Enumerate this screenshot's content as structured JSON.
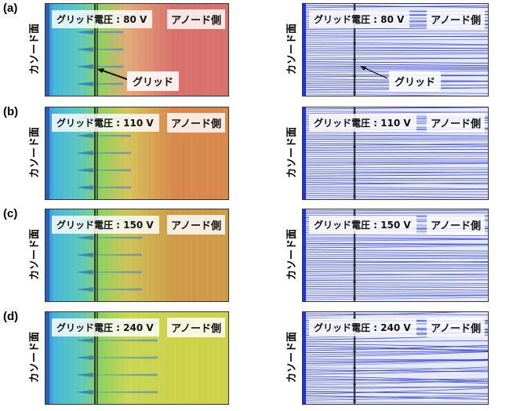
{
  "rows": [
    {
      "label": "(a)",
      "voltage_text": "グリッド電圧 : 80 V",
      "anode_text": "アノード側",
      "cathode_text": "カソード面",
      "grid_callout": "グリッド",
      "hue_shift": 0
    },
    {
      "label": "(b)",
      "voltage_text": "グリッド電圧 : 110 V",
      "anode_text": "アノード側",
      "cathode_text": "カソード面",
      "hue_shift": 1
    },
    {
      "label": "(c)",
      "voltage_text": "グリッド電圧 : 150 V",
      "anode_text": "アノード側",
      "cathode_text": "カソード面",
      "hue_shift": 2
    },
    {
      "label": "(d)",
      "voltage_text": "グリッド電圧 : 240 V",
      "anode_text": "アノード側",
      "cathode_text": "カソード面",
      "hue_shift": 3
    }
  ],
  "colors": {
    "field_cathode": "#3ab0d8",
    "field_mid": "#9fd35a",
    "field_anode_a": "#d9706a",
    "field_anode_d": "#cdd24a",
    "trajectory": "#2233dd",
    "grid_line": "#222222"
  }
}
